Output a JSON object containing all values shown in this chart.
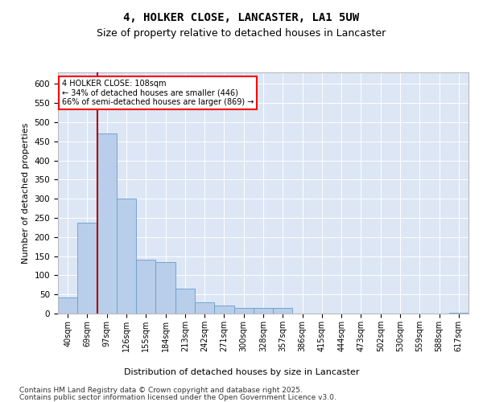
{
  "title": "4, HOLKER CLOSE, LANCASTER, LA1 5UW",
  "subtitle": "Size of property relative to detached houses in Lancaster",
  "xlabel": "Distribution of detached houses by size in Lancaster",
  "ylabel": "Number of detached properties",
  "footnote1": "Contains HM Land Registry data © Crown copyright and database right 2025.",
  "footnote2": "Contains public sector information licensed under the Open Government Licence v3.0.",
  "annotation_title": "4 HOLKER CLOSE: 108sqm",
  "annotation_line1": "← 34% of detached houses are smaller (446)",
  "annotation_line2": "66% of semi-detached houses are larger (869) →",
  "bar_color": "#b8ceea",
  "bar_edge_color": "#6a9dc8",
  "vline_color": "#aa0000",
  "vline_position": 1.5,
  "background_color": "#dce6f5",
  "categories": [
    "40sqm",
    "69sqm",
    "97sqm",
    "126sqm",
    "155sqm",
    "184sqm",
    "213sqm",
    "242sqm",
    "271sqm",
    "300sqm",
    "328sqm",
    "357sqm",
    "386sqm",
    "415sqm",
    "444sqm",
    "473sqm",
    "502sqm",
    "530sqm",
    "559sqm",
    "588sqm",
    "617sqm"
  ],
  "values": [
    42,
    238,
    470,
    300,
    140,
    135,
    65,
    30,
    20,
    15,
    15,
    15,
    0,
    0,
    0,
    0,
    0,
    0,
    0,
    0,
    2
  ],
  "ylim": [
    0,
    630
  ],
  "yticks": [
    0,
    50,
    100,
    150,
    200,
    250,
    300,
    350,
    400,
    450,
    500,
    550,
    600
  ],
  "title_fontsize": 10,
  "subtitle_fontsize": 9,
  "ylabel_fontsize": 8,
  "xlabel_fontsize": 8,
  "footnote_fontsize": 6.5
}
